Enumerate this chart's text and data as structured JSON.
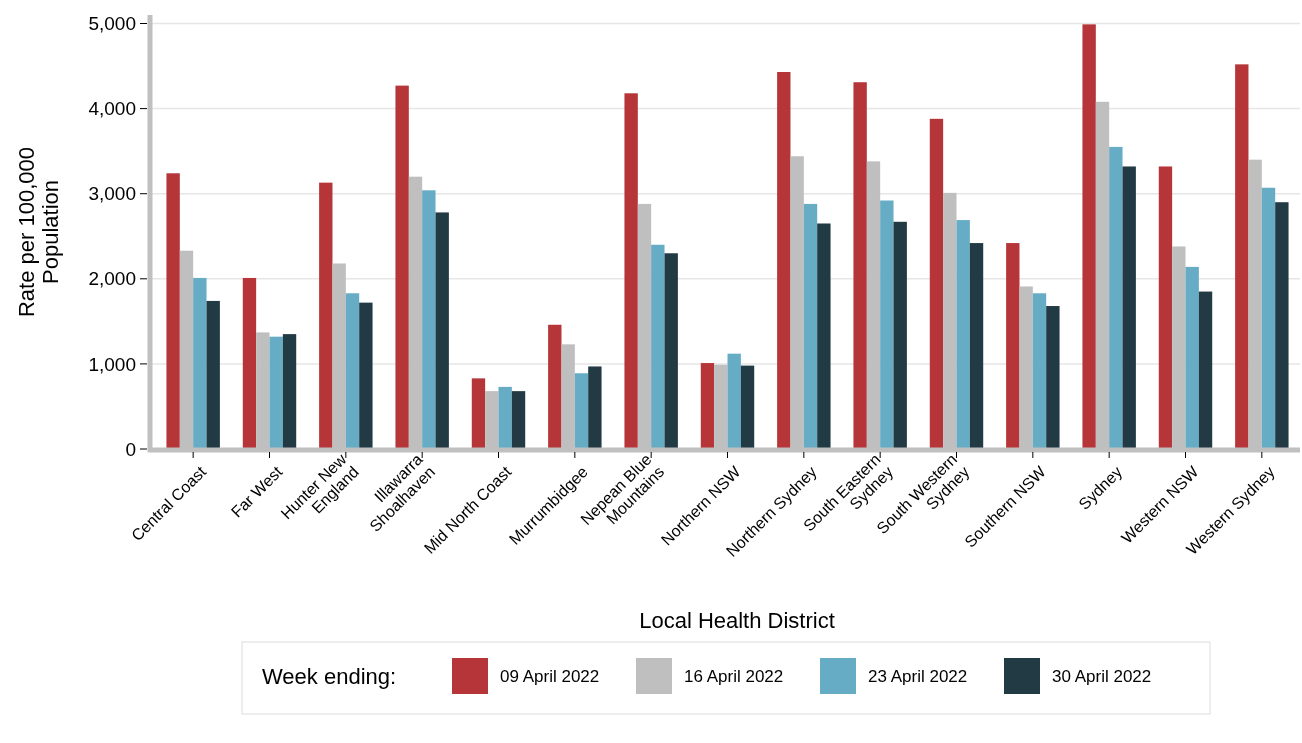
{
  "chart_data": {
    "type": "bar",
    "xlabel": "Local Health District",
    "ylabel": "Rate per 100,000\nPopulation",
    "legend_title": "Week ending:",
    "legend": "bottom",
    "grid": "y",
    "categories": [
      "Central Coast",
      "Far West",
      "Hunter New\nEngland",
      "Illawarra\nShoalhaven",
      "Mid North Coast",
      "Murrumbidgee",
      "Nepean Blue\nMountains",
      "Northern NSW",
      "Northern Sydney",
      "South Eastern\nSydney",
      "South Western\nSydney",
      "Southern NSW",
      "Sydney",
      "Western NSW",
      "Western Sydney"
    ],
    "ylim": [
      0,
      5100
    ],
    "yticks": [
      {
        "value": 0,
        "label": "0"
      },
      {
        "value": 1000,
        "label": "1,000"
      },
      {
        "value": 2000,
        "label": "2,000"
      },
      {
        "value": 3000,
        "label": "3,000"
      },
      {
        "value": 4000,
        "label": "4,000"
      },
      {
        "value": 5000,
        "label": "5,000"
      }
    ],
    "series": [
      {
        "name": "09 April 2022",
        "color": "#b63538",
        "values": [
          3240,
          2010,
          3130,
          4270,
          830,
          1460,
          4180,
          1010,
          4430,
          4310,
          3880,
          2420,
          4990,
          3320,
          4520
        ]
      },
      {
        "name": "16 April 2022",
        "color": "#bfbfbf",
        "values": [
          2330,
          1370,
          2180,
          3200,
          680,
          1230,
          2880,
          990,
          3440,
          3380,
          3010,
          1910,
          4080,
          2380,
          3400
        ]
      },
      {
        "name": "23 April 2022",
        "color": "#65acc4",
        "values": [
          2010,
          1320,
          1830,
          3040,
          730,
          890,
          2400,
          1120,
          2880,
          2920,
          2690,
          1830,
          3550,
          2140,
          3070
        ]
      },
      {
        "name": "30 April 2022",
        "color": "#223a44",
        "values": [
          1740,
          1350,
          1720,
          2780,
          680,
          970,
          2300,
          980,
          2650,
          2670,
          2420,
          1680,
          3320,
          1850,
          2900
        ]
      }
    ]
  }
}
